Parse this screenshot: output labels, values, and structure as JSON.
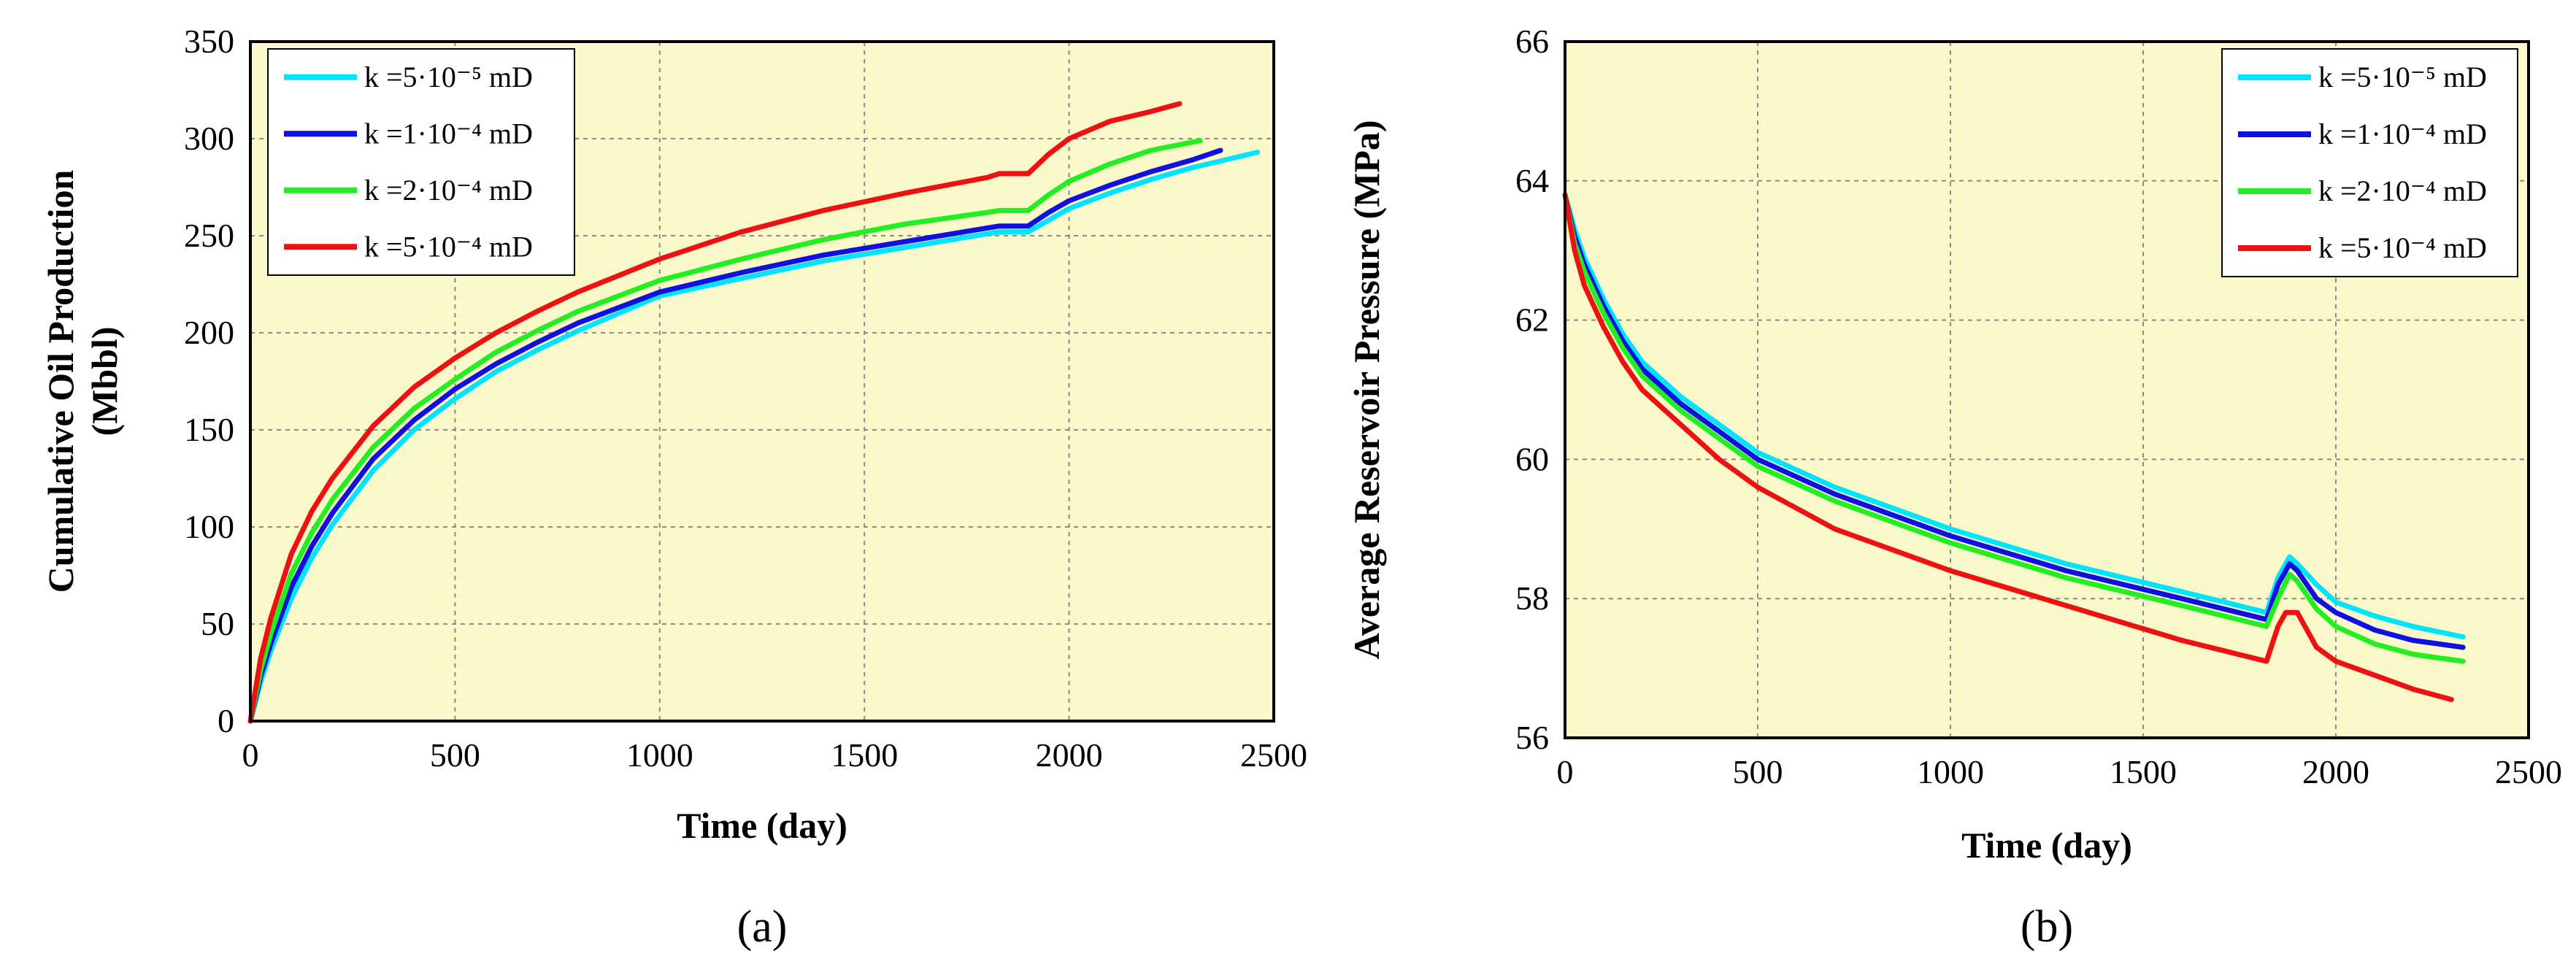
{
  "chart_data": [
    {
      "type": "line",
      "panel_label": "(a)",
      "xlabel": "Time (day)",
      "ylabel_line1": "Cumulative Oil Production",
      "ylabel_line2": "(Mbbl)",
      "xlim": [
        0,
        2500
      ],
      "ylim": [
        0,
        350
      ],
      "xticks": [
        "0",
        "500",
        "1000",
        "1500",
        "2000",
        "2500"
      ],
      "yticks": [
        "0",
        "50",
        "100",
        "150",
        "200",
        "250",
        "300",
        "350"
      ],
      "grid": true,
      "plot_background": "#fbf8c9",
      "legend_position": "top-left",
      "series": [
        {
          "name": "k =5·10⁻⁵ mD",
          "color": "#00e5ff",
          "x": [
            0,
            25,
            50,
            100,
            150,
            200,
            300,
            400,
            500,
            600,
            700,
            800,
            1000,
            1200,
            1400,
            1600,
            1800,
            1830,
            1900,
            1950,
            2000,
            2100,
            2200,
            2300,
            2400,
            2460
          ],
          "y": [
            0,
            20,
            36,
            63,
            84,
            101,
            129,
            150,
            166,
            180,
            191,
            201,
            219,
            228,
            237,
            244,
            251,
            252,
            252,
            258,
            264,
            272,
            279,
            285,
            290,
            293
          ]
        },
        {
          "name": "k =1·10⁻⁴ mD",
          "color": "#1010e0",
          "x": [
            0,
            25,
            50,
            100,
            150,
            200,
            300,
            400,
            500,
            600,
            700,
            800,
            1000,
            1200,
            1400,
            1600,
            1800,
            1830,
            1900,
            1950,
            2000,
            2100,
            2200,
            2300,
            2370
          ],
          "y": [
            0,
            23,
            40,
            69,
            90,
            107,
            135,
            155,
            171,
            184,
            195,
            205,
            221,
            231,
            240,
            247,
            254,
            255,
            255,
            262,
            268,
            276,
            283,
            289,
            294
          ]
        },
        {
          "name": "k =2·10⁻⁴ mD",
          "color": "#22ee22",
          "x": [
            0,
            25,
            50,
            100,
            150,
            200,
            300,
            400,
            500,
            600,
            700,
            800,
            1000,
            1200,
            1400,
            1600,
            1800,
            1830,
            1900,
            1950,
            2000,
            2100,
            2200,
            2320
          ],
          "y": [
            0,
            26,
            45,
            76,
            97,
            114,
            141,
            161,
            176,
            190,
            201,
            211,
            227,
            238,
            248,
            256,
            262,
            263,
            263,
            271,
            278,
            287,
            294,
            299
          ]
        },
        {
          "name": "k =5·10⁻⁴ mD",
          "color": "#ee1111",
          "x": [
            0,
            25,
            50,
            100,
            150,
            200,
            300,
            400,
            500,
            600,
            700,
            800,
            1000,
            1200,
            1400,
            1600,
            1800,
            1830,
            1900,
            1950,
            2000,
            2100,
            2200,
            2270
          ],
          "y": [
            0,
            32,
            53,
            86,
            108,
            125,
            152,
            172,
            187,
            200,
            211,
            221,
            238,
            252,
            263,
            272,
            280,
            282,
            282,
            292,
            300,
            309,
            314,
            318
          ]
        }
      ]
    },
    {
      "type": "line",
      "panel_label": "(b)",
      "xlabel": "Time (day)",
      "ylabel_line1": "Average Reservoir Pressure (MPa)",
      "ylabel_line2": "",
      "xlim": [
        0,
        2500
      ],
      "ylim": [
        56,
        66
      ],
      "xticks": [
        "0",
        "500",
        "1000",
        "1500",
        "2000",
        "2500"
      ],
      "yticks": [
        "56",
        "58",
        "60",
        "62",
        "64",
        "66"
      ],
      "grid": true,
      "plot_background": "#fbf8c9",
      "legend_position": "top-right",
      "series": [
        {
          "name": "k =5·10⁻⁵ mD",
          "color": "#00e5ff",
          "x": [
            0,
            25,
            50,
            100,
            150,
            200,
            300,
            400,
            500,
            700,
            1000,
            1300,
            1600,
            1820,
            1850,
            1880,
            1900,
            1950,
            2000,
            2100,
            2200,
            2330
          ],
          "y": [
            63.8,
            63.3,
            62.9,
            62.3,
            61.8,
            61.4,
            60.9,
            60.5,
            60.1,
            59.6,
            59.0,
            58.5,
            58.1,
            57.8,
            58.3,
            58.6,
            58.5,
            58.2,
            57.95,
            57.75,
            57.6,
            57.45
          ]
        },
        {
          "name": "k =1·10⁻⁴ mD",
          "color": "#1010e0",
          "x": [
            0,
            25,
            50,
            100,
            150,
            200,
            300,
            400,
            500,
            700,
            1000,
            1300,
            1600,
            1820,
            1850,
            1880,
            1900,
            1950,
            2000,
            2100,
            2200,
            2330
          ],
          "y": [
            63.8,
            63.2,
            62.8,
            62.2,
            61.7,
            61.3,
            60.8,
            60.4,
            60.0,
            59.5,
            58.9,
            58.4,
            58.0,
            57.7,
            58.2,
            58.5,
            58.4,
            58.0,
            57.8,
            57.55,
            57.4,
            57.3
          ]
        },
        {
          "name": "k =2·10⁻⁴ mD",
          "color": "#22ee22",
          "x": [
            0,
            25,
            50,
            100,
            150,
            200,
            300,
            400,
            500,
            700,
            1000,
            1300,
            1600,
            1820,
            1850,
            1880,
            1900,
            1950,
            2000,
            2100,
            2200,
            2330
          ],
          "y": [
            63.8,
            63.1,
            62.7,
            62.1,
            61.6,
            61.2,
            60.7,
            60.3,
            59.9,
            59.4,
            58.8,
            58.3,
            57.9,
            57.6,
            58.0,
            58.35,
            58.25,
            57.85,
            57.6,
            57.35,
            57.2,
            57.1
          ]
        },
        {
          "name": "k =5·10⁻⁴ mD",
          "color": "#ee1111",
          "x": [
            0,
            25,
            50,
            100,
            150,
            200,
            300,
            400,
            500,
            700,
            1000,
            1300,
            1600,
            1820,
            1850,
            1870,
            1900,
            1920,
            1950,
            2000,
            2100,
            2200,
            2300
          ],
          "y": [
            63.8,
            63.0,
            62.5,
            61.9,
            61.4,
            61.0,
            60.5,
            60.0,
            59.6,
            59.0,
            58.4,
            57.9,
            57.4,
            57.1,
            57.6,
            57.8,
            57.8,
            57.6,
            57.3,
            57.1,
            56.9,
            56.7,
            56.55
          ]
        }
      ]
    }
  ]
}
